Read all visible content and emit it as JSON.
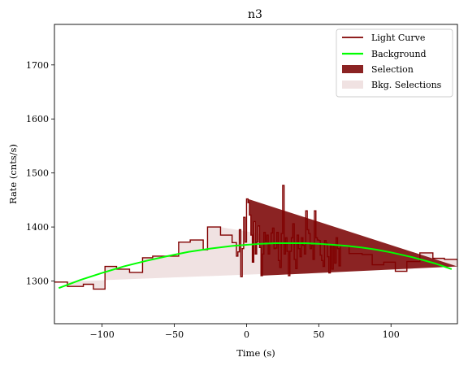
{
  "chart_data": {
    "type": "line",
    "title": "n3",
    "xlabel": "Time (s)",
    "ylabel": "Rate (cnts/s)",
    "xlim": [
      -133,
      146
    ],
    "ylim": [
      1221,
      1775
    ],
    "xticks": [
      -100,
      -50,
      0,
      50,
      100
    ],
    "yticks": [
      1300,
      1400,
      1500,
      1600,
      1700
    ],
    "grid": false,
    "legend_position": "top-right",
    "legend": [
      {
        "label": "Light Curve",
        "kind": "line",
        "color": "#800000"
      },
      {
        "label": "Background",
        "kind": "line",
        "color": "#00ff00"
      },
      {
        "label": "Selection",
        "kind": "patch",
        "color": "#8b2323"
      },
      {
        "label": "Bkg. Selections",
        "kind": "patch",
        "color": "#f0e2e2"
      }
    ],
    "colors": {
      "light_curve": "#800000",
      "background": "#00ff00",
      "selection": "#8b2323",
      "bkg_selection": "#f0e2e2"
    },
    "light_curve": {
      "edges": [
        -133,
        -124,
        -113,
        -106,
        -98,
        -90,
        -81,
        -72,
        -65,
        -57,
        -47,
        -39,
        -30,
        -27,
        -18,
        -10,
        -7,
        -6,
        -5,
        -4,
        -3,
        -2,
        -1,
        0,
        1,
        2,
        3,
        4,
        5,
        6,
        7,
        8,
        9,
        10,
        11,
        12,
        13,
        14,
        15,
        16,
        17,
        18,
        19,
        20,
        21,
        22,
        23,
        24,
        25,
        26,
        27,
        28,
        29,
        30,
        31,
        32,
        33,
        34,
        35,
        36,
        37,
        38,
        39,
        40,
        41,
        42,
        43,
        44,
        45,
        46,
        47,
        48,
        49,
        50,
        51,
        52,
        53,
        54,
        55,
        56,
        57,
        58,
        59,
        60,
        61,
        62,
        63,
        64,
        65,
        71,
        80,
        87,
        95,
        103,
        111,
        120,
        129,
        137,
        146
      ],
      "values": [
        1298,
        1290,
        1294,
        1285,
        1327,
        1322,
        1316,
        1343,
        1346,
        1346,
        1372,
        1376,
        1358,
        1400,
        1385,
        1371,
        1346,
        1354,
        1395,
        1308,
        1360,
        1418,
        1372,
        1452,
        1445,
        1422,
        1385,
        1335,
        1410,
        1350,
        1372,
        1402,
        1362,
        1310,
        1350,
        1390,
        1373,
        1385,
        1350,
        1370,
        1389,
        1398,
        1360,
        1361,
        1390,
        1338,
        1325,
        1388,
        1477,
        1350,
        1380,
        1355,
        1310,
        1355,
        1380,
        1406,
        1340,
        1323,
        1385,
        1360,
        1345,
        1380,
        1366,
        1350,
        1430,
        1395,
        1388,
        1360,
        1366,
        1340,
        1430,
        1380,
        1376,
        1375,
        1348,
        1338,
        1327,
        1375,
        1370,
        1345,
        1315,
        1365,
        1322,
        1365,
        1333,
        1380,
        1360,
        1328,
        1365,
        1351,
        1349,
        1330,
        1335,
        1318,
        1336,
        1352,
        1342,
        1340,
        1327
      ]
    },
    "background": {
      "x": [
        -130,
        -115,
        -100,
        -85,
        -70,
        -55,
        -40,
        -25,
        -10,
        0,
        10,
        20,
        30,
        40,
        50,
        60,
        70,
        80,
        90,
        100,
        115,
        130,
        142
      ],
      "y": [
        1287,
        1302,
        1315,
        1327,
        1337,
        1346,
        1354,
        1360,
        1365,
        1367,
        1369,
        1370,
        1370,
        1370,
        1369,
        1367,
        1365,
        1362,
        1358,
        1353,
        1344,
        1333,
        1322
      ]
    },
    "selection": [
      0.8,
      11.0
    ],
    "bkg_selections": [
      [
        -133,
        -18.5
      ],
      [
        72,
        146
      ]
    ]
  }
}
